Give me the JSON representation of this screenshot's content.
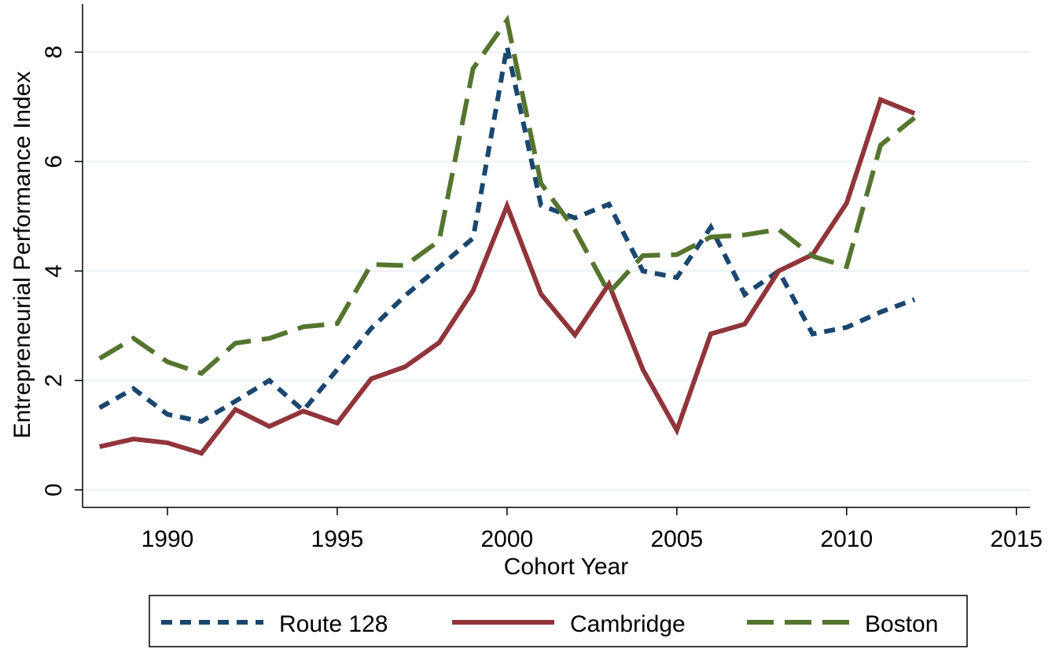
{
  "chart_data": {
    "type": "line",
    "x_label": "Cohort Year",
    "y_label": "Entrepreneurial Performance Index",
    "x": [
      1988,
      1989,
      1990,
      1991,
      1992,
      1993,
      1994,
      1995,
      1996,
      1997,
      1998,
      1999,
      2000,
      2001,
      2002,
      2003,
      2004,
      2005,
      2006,
      2007,
      2008,
      2009,
      2010,
      2011,
      2012
    ],
    "series": [
      {
        "name": "Route 128",
        "color": "#1a476f",
        "dash": "short",
        "values": [
          1.5,
          1.85,
          1.38,
          1.25,
          1.62,
          2.0,
          1.45,
          2.2,
          2.95,
          3.55,
          4.07,
          4.6,
          8.1,
          5.2,
          4.97,
          5.22,
          4.0,
          3.88,
          4.8,
          3.57,
          4.0,
          2.85,
          2.97,
          3.25,
          3.48
        ]
      },
      {
        "name": "Cambridge",
        "color": "#90353b",
        "dash": "solid",
        "values": [
          0.79,
          0.93,
          0.86,
          0.67,
          1.47,
          1.16,
          1.44,
          1.22,
          2.03,
          2.25,
          2.69,
          3.64,
          5.19,
          3.58,
          2.83,
          3.76,
          2.2,
          1.09,
          2.85,
          3.03,
          4.0,
          4.3,
          5.24,
          7.13,
          6.88
        ]
      },
      {
        "name": "Boston",
        "color": "#55752f",
        "dash": "long",
        "values": [
          2.4,
          2.77,
          2.34,
          2.13,
          2.68,
          2.77,
          2.98,
          3.04,
          4.12,
          4.1,
          4.55,
          7.7,
          8.58,
          5.6,
          4.75,
          3.6,
          4.28,
          4.3,
          4.62,
          4.66,
          4.76,
          4.27,
          4.08,
          6.3,
          6.8
        ]
      }
    ],
    "xlim": [
      1987.5,
      2015.4
    ],
    "xticks": [
      1990,
      1995,
      2000,
      2005,
      2010,
      2015
    ],
    "ylim": [
      -0.32,
      8.88
    ],
    "yticks": [
      0,
      2,
      4,
      6,
      8
    ],
    "grid": true,
    "legend": "bottom"
  }
}
